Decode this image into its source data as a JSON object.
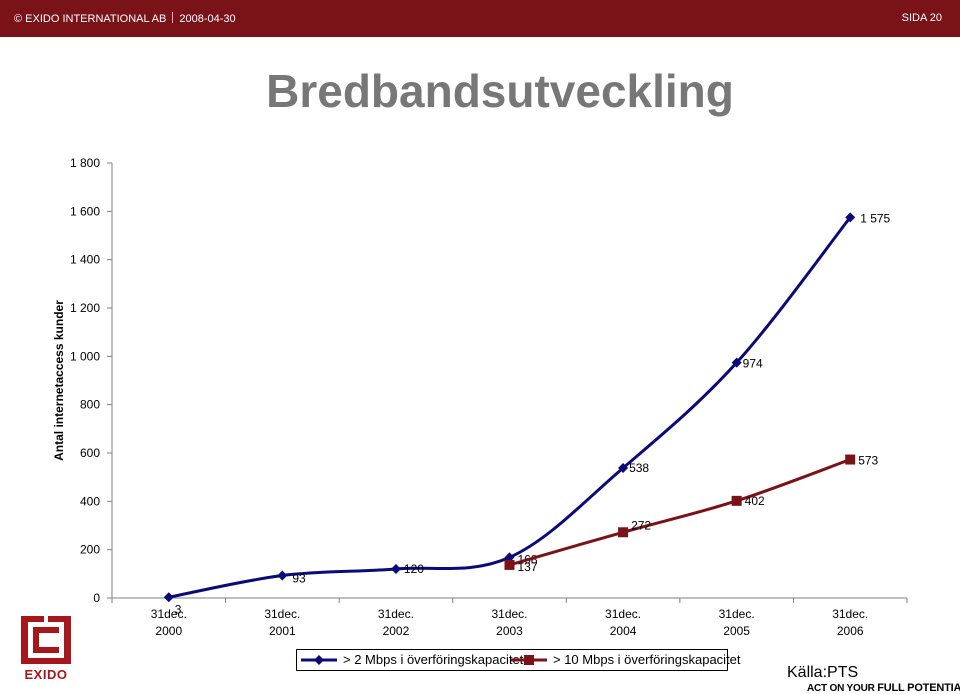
{
  "header": {
    "copyright": "© EXIDO INTERNATIONAL AB",
    "date": "2008-04-30",
    "page": "SIDA 20",
    "background": "#7a1318"
  },
  "title": "Bredbandsutveckling",
  "chart_data": {
    "type": "line",
    "categories": [
      "31dec.\n2000",
      "31dec.\n2001",
      "31dec.\n2002",
      "31dec.\n2003",
      "31dec.\n2004",
      "31dec.\n2005",
      "31dec.\n2006"
    ],
    "ylabel": "Antal internetaccess kunder",
    "ylim": [
      0,
      1800
    ],
    "yticks": [
      "0",
      "200",
      "400",
      "600",
      "800",
      "1 000",
      "1 200",
      "1 400",
      "1 600",
      "1 800"
    ],
    "grid": false,
    "legend_position": "bottom",
    "series": [
      {
        "name": "> 2 Mbps i överföringskapacitet",
        "color": "#0a0a78",
        "marker": "diamond",
        "values": [
          3,
          93,
          120,
          168,
          538,
          974,
          1575
        ],
        "labels": [
          "3",
          "93",
          "120",
          "168",
          "538",
          "974",
          "1 575"
        ]
      },
      {
        "name": "> 10 Mbps i överföringskapacitet",
        "color": "#7a1318",
        "marker": "square",
        "values": [
          null,
          null,
          null,
          137,
          272,
          402,
          573
        ],
        "labels": [
          "",
          "",
          "",
          "137",
          "272",
          "402",
          "573"
        ]
      }
    ]
  },
  "source": "Källa:PTS",
  "tagline": {
    "normal": "ACT ON YOUR",
    "strong": "FULL POTENTIAL"
  },
  "logo": {
    "text": "EXIDO",
    "color": "#a7161c"
  }
}
